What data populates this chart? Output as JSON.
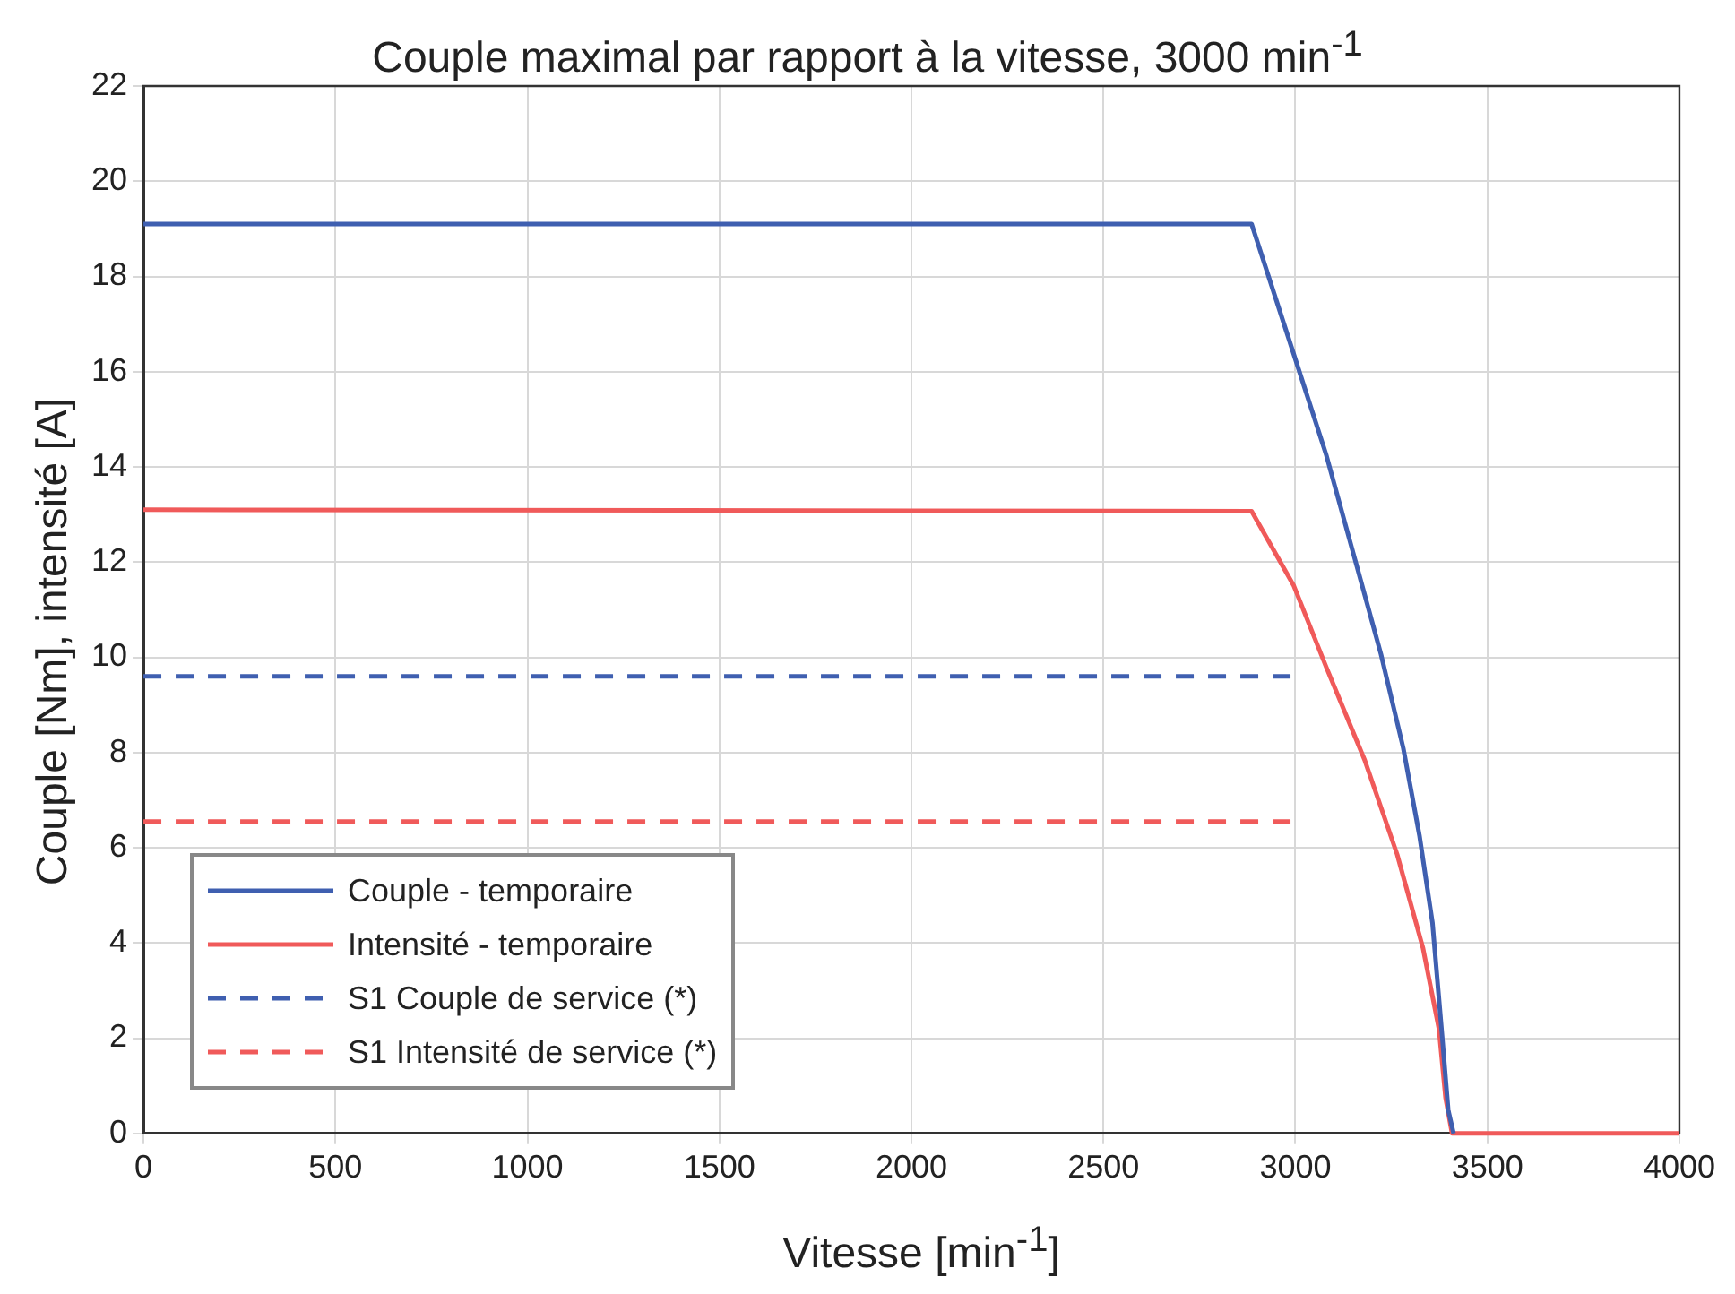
{
  "chart_data": {
    "type": "line",
    "title": "Couple maximal par rapport à la vitesse, 3000 min$^{-1}$",
    "xlabel": "Vitesse [min$^{-1}$]",
    "ylabel": "Couple [Nm], intensité [A]",
    "xlim": [
      0,
      4000
    ],
    "xticks": [
      0,
      500,
      1000,
      1500,
      2000,
      2500,
      3000,
      3500,
      4000
    ],
    "ylim": [
      0,
      22
    ],
    "yticks": [
      0,
      2,
      4,
      6,
      8,
      10,
      12,
      14,
      16,
      18,
      20,
      22
    ],
    "grid": true,
    "legend": "bottom left",
    "marker": "none",
    "series": [
      {
        "name": "Couple - temporaire",
        "color": "#3f5fb0",
        "line_style": "solid",
        "x": [
          0,
          2886,
          2996,
          3080,
          3156,
          3223,
          3281,
          3323,
          3357,
          3382,
          3398,
          3412
        ],
        "values": [
          19.1,
          19.1,
          16.36,
          14.26,
          12.03,
          10.06,
          8.09,
          6.26,
          4.42,
          2.06,
          0.49,
          0
        ]
      },
      {
        "name": "Intensité - temporaire",
        "color": "#f05a5a",
        "line_style": "solid",
        "x": [
          0,
          2886,
          2996,
          3080,
          3181,
          3265,
          3332,
          3374,
          3391,
          3408,
          4000
        ],
        "values": [
          13.1,
          13.07,
          11.5,
          9.8,
          7.83,
          5.86,
          3.9,
          2.19,
          0.75,
          0,
          0
        ]
      },
      {
        "name": "S1 Couple de service (*)",
        "color": "#3f5fb0",
        "line_style": "dashed",
        "x": [
          0,
          3000
        ],
        "values": [
          9.6,
          9.6
        ]
      },
      {
        "name": "S1 Intensité de service (*)",
        "color": "#f05a5a",
        "line_style": "dashed",
        "x": [
          0,
          3000
        ],
        "values": [
          6.55,
          6.55
        ]
      }
    ]
  }
}
